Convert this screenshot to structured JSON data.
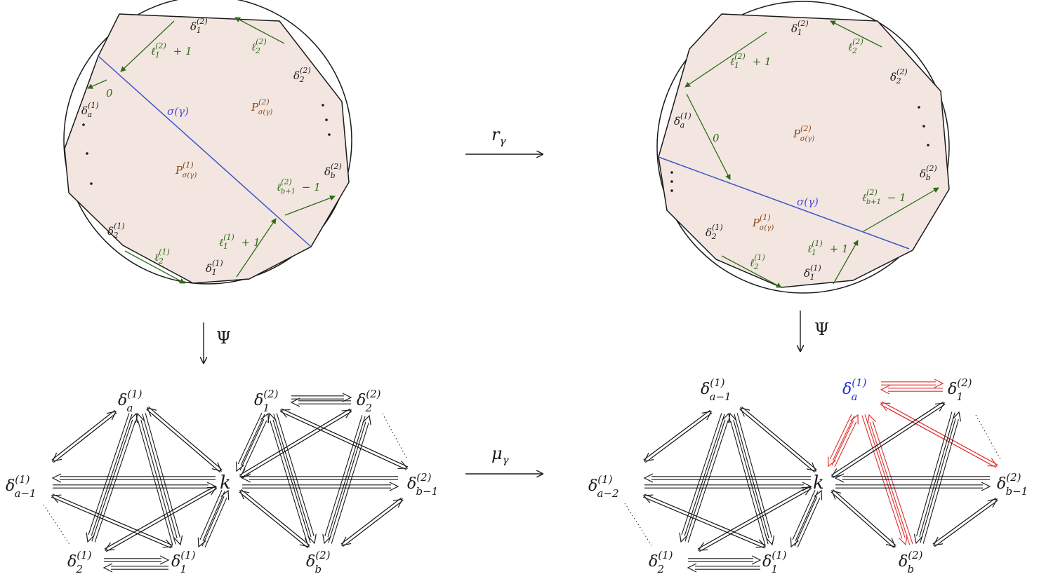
{
  "colors": {
    "polygon_fill": "#f3e6e0",
    "diagonal": "#3a55c8",
    "green": "#2e6b1a",
    "red": "#e03030",
    "black": "#1a1a1a",
    "brown": "#8b4513"
  },
  "maps": {
    "r_gamma": "r_γ",
    "psi": "Ψ",
    "mu_gamma": "μ_γ"
  },
  "left_disk": {
    "diagonal_label": "σ(γ)",
    "polygon_top_label": "P^(2)_σ(γ)",
    "polygon_bottom_label": "P^(1)_σ(γ)",
    "edges": [
      "δ^(2)_1",
      "δ^(2)_2",
      "δ^(2)_b",
      "δ^(1)_a",
      "δ^(1)_2",
      "δ^(1)_1"
    ],
    "arrow_labels": [
      "ℓ^(2)_1 + 1",
      "ℓ^(2)_2",
      "0",
      "ℓ^(2)_(b+1) − 1",
      "ℓ^(1)_1 + 1",
      "ℓ^(1)_2"
    ]
  },
  "right_disk": {
    "diagonal_label": "σ(γ)",
    "polygon_top_label": "P^(2)_σ(γ)",
    "polygon_bottom_label": "P^(1)_σ(γ)",
    "edges": [
      "δ^(2)_1",
      "δ^(2)_2",
      "δ^(2)_b",
      "δ^(1)_a",
      "δ^(1)_2",
      "δ^(1)_1"
    ],
    "arrow_labels": [
      "ℓ^(2)_1 + 1",
      "ℓ^(2)_2",
      "0",
      "ℓ^(2)_(b+1) − 1",
      "ℓ^(1)_1 + 1",
      "ℓ^(1)_2"
    ]
  },
  "left_quiver": {
    "center": "k",
    "nodes": [
      "δ^(1)_a",
      "δ^(1)_(a−1)",
      "δ^(1)_2",
      "δ^(1)_1",
      "δ^(2)_1",
      "δ^(2)_2",
      "δ^(2)_(b−1)",
      "δ^(2)_b"
    ]
  },
  "right_quiver": {
    "center": "k",
    "nodes": [
      "δ^(1)_(a−1)",
      "δ^(1)_(a−2)",
      "δ^(1)_2",
      "δ^(1)_1",
      "δ^(1)_a",
      "δ^(2)_1",
      "δ^(2)_(b−1)",
      "δ^(2)_b"
    ]
  }
}
